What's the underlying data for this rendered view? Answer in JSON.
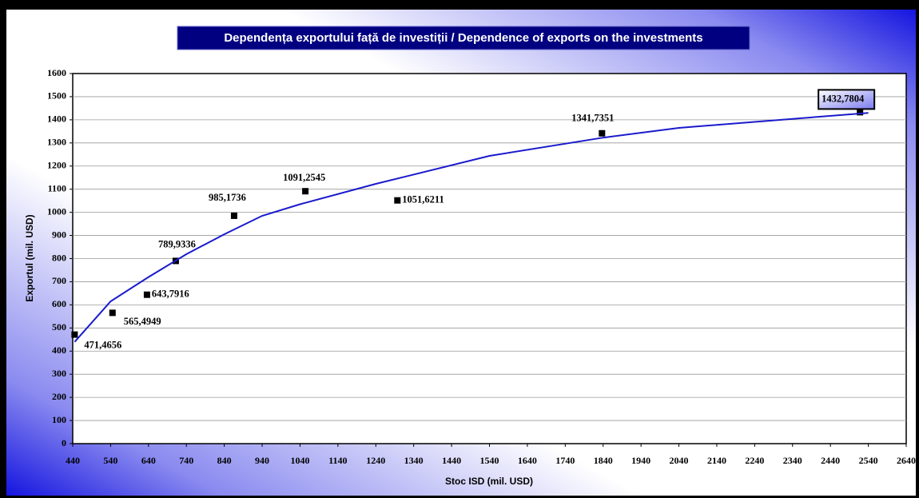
{
  "chart_data": {
    "type": "scatter",
    "title": "Dependența exportului față de investiții / Dependence of exports on the investments",
    "x_label": "Stoc ISD (mil. USD)",
    "y_label": "Exportul (mil. USD)",
    "series": [
      {
        "name": "Export",
        "color": "#000000",
        "x": [
          445,
          545,
          636,
          712,
          866,
          1054,
          1297,
          1837,
          2518
        ],
        "values": [
          471.4656,
          565.4949,
          643.7916,
          789.9336,
          985.1736,
          1091.2545,
          1051.6211,
          1341.7351,
          1432.7804
        ],
        "value_labels": [
          "471,4656",
          "565,4949",
          "643,7916",
          "789,9336",
          "985,1736",
          "1091,2545",
          "1051,6211",
          "1341,7351",
          "1432,7804"
        ]
      },
      {
        "type": "line",
        "color": "#1a1acc",
        "x": [
          445,
          540,
          640,
          740,
          840,
          940,
          1040,
          1240,
          1540,
          1840,
          2040,
          2540
        ],
        "values": [
          440,
          615,
          720,
          819,
          905,
          985,
          1035,
          1123,
          1244,
          1323,
          1365,
          1430
        ]
      }
    ],
    "xlim": [
      440,
      2640
    ],
    "xticks": [
      440,
      540,
      640,
      740,
      840,
      940,
      1040,
      1140,
      1240,
      1340,
      1440,
      1540,
      1640,
      1740,
      1840,
      1940,
      2040,
      2140,
      2240,
      2340,
      2440,
      2540,
      2640
    ],
    "ylim": [
      0,
      1600
    ],
    "yticks": [
      0,
      100,
      200,
      300,
      400,
      500,
      600,
      700,
      800,
      900,
      1000,
      1100,
      1200,
      1300,
      1400,
      1500,
      1600
    ],
    "grid": true
  }
}
